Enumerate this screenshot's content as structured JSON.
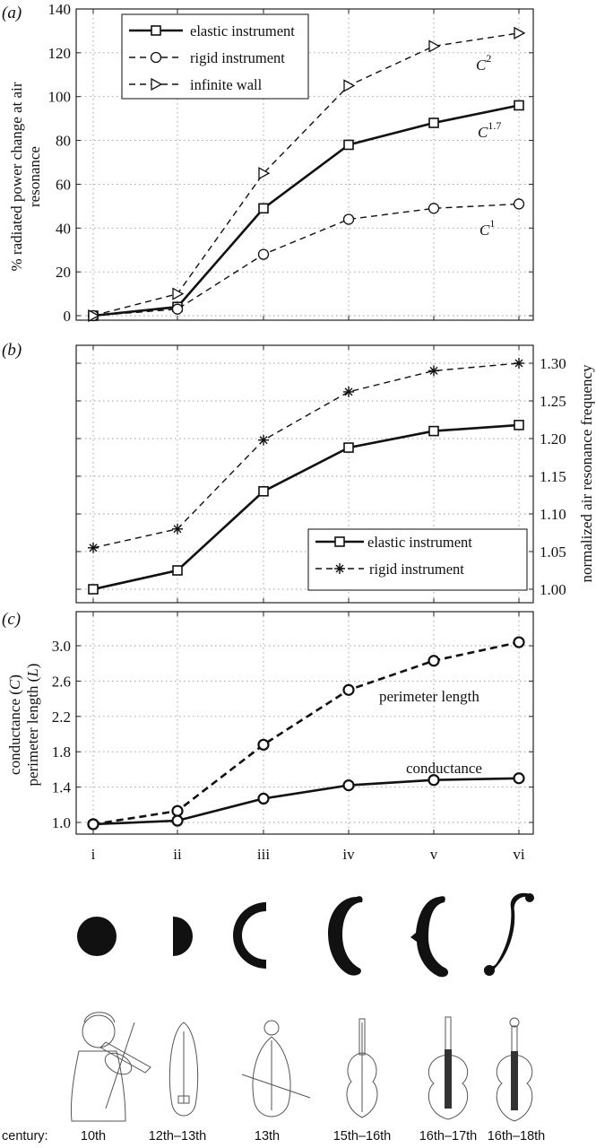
{
  "chart_data": [
    {
      "panel": "(a)",
      "type": "line",
      "categories": [
        "i",
        "ii",
        "iii",
        "iv",
        "v",
        "vi"
      ],
      "ylabel": "% radiated power change at air resonance",
      "ylim": [
        0,
        140
      ],
      "yticks": [
        "0",
        "20",
        "40",
        "60",
        "80",
        "100",
        "120",
        "140"
      ],
      "grid": true,
      "legend_position": "top-left",
      "series": [
        {
          "name": "elastic instrument",
          "marker": "square",
          "style": "solid",
          "values": [
            0,
            4,
            49,
            78,
            88,
            96
          ]
        },
        {
          "name": "rigid instrument",
          "marker": "circle",
          "style": "dashed",
          "values": [
            0,
            3,
            28,
            44,
            49,
            51
          ]
        },
        {
          "name": "infinite wall",
          "marker": "triangle",
          "style": "dashed",
          "values": [
            0,
            10,
            65,
            105,
            123,
            129
          ]
        }
      ],
      "annotations": [
        {
          "base": "C",
          "exp": "2"
        },
        {
          "base": "C",
          "exp": "1.7"
        },
        {
          "base": "C",
          "exp": "1"
        }
      ]
    },
    {
      "panel": "(b)",
      "type": "line",
      "categories": [
        "i",
        "ii",
        "iii",
        "iv",
        "v",
        "vi"
      ],
      "ylabel": "normalized air resonance frequency",
      "ylim": [
        1.0,
        1.32
      ],
      "yticks": [
        "1.00",
        "1.05",
        "1.10",
        "1.15",
        "1.20",
        "1.25",
        "1.30"
      ],
      "yaxis_side": "right",
      "grid": true,
      "legend_position": "bottom-right",
      "series": [
        {
          "name": "elastic instrument",
          "marker": "square",
          "style": "solid",
          "values": [
            1.0,
            1.025,
            1.13,
            1.188,
            1.21,
            1.218
          ]
        },
        {
          "name": "rigid instrument",
          "marker": "asterisk",
          "style": "dashed",
          "values": [
            1.055,
            1.08,
            1.198,
            1.262,
            1.29,
            1.3
          ]
        }
      ]
    },
    {
      "panel": "(c)",
      "type": "line",
      "categories": [
        "i",
        "ii",
        "iii",
        "iv",
        "v",
        "vi"
      ],
      "ylabel_lines": [
        "conductance (C)",
        "perimeter length (L)"
      ],
      "ylim": [
        0.92,
        3.08
      ],
      "yticks": [
        "1.0",
        "1.4",
        "1.8",
        "2.2",
        "2.6",
        "3.0"
      ],
      "grid": true,
      "series": [
        {
          "name": "perimeter length",
          "marker": "circle",
          "style": "dashed",
          "values": [
            0.98,
            1.13,
            1.88,
            2.5,
            2.83,
            3.04
          ]
        },
        {
          "name": "conductance",
          "marker": "circle",
          "style": "solid",
          "values": [
            0.98,
            1.02,
            1.27,
            1.42,
            1.48,
            1.5
          ]
        }
      ]
    }
  ],
  "panel_labels": [
    "(a)",
    "(b)",
    "(c)"
  ],
  "xticks": [
    "i",
    "ii",
    "iii",
    "iv",
    "v",
    "vi"
  ],
  "centuries": {
    "label": "century:",
    "values": [
      "10th",
      "12th–13th",
      "13th",
      "15th–16th",
      "16th–17th",
      "16th–18th"
    ]
  },
  "shapes": [
    "filled circle",
    "half circle",
    "C shape",
    "C-hole",
    "C-hole with notch",
    "f-hole"
  ],
  "instruments": [
    "medieval fiddle player",
    "rebec",
    "lira",
    "viol",
    "early violin",
    "violin"
  ]
}
